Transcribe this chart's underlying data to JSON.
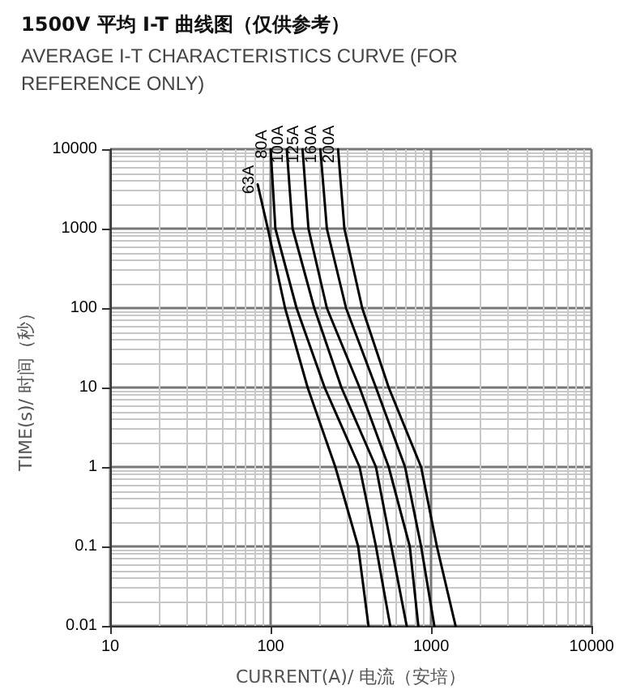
{
  "chart_data": {
    "type": "line",
    "title": "1500V 平均 I-T 曲线图（仅供参考）",
    "subtitle": "AVERAGE I-T CHARACTERISTICS CURVE (FOR REFERENCE ONLY)",
    "xlabel": "CURRENT(A)/ 电流（安培）",
    "ylabel": "TIME(s)/ 时间（秒）",
    "log": "xy",
    "xlim": [
      10,
      10000
    ],
    "ylim": [
      0.01,
      10000
    ],
    "xticks": [
      10,
      100,
      1000,
      10000
    ],
    "yticks": [
      0.01,
      0.1,
      1,
      10,
      100,
      1000,
      10000
    ],
    "grid": true,
    "legend": false,
    "marker": "none",
    "line_style": "solid",
    "series": [
      {
        "name": "63A",
        "color": "#000000",
        "x": [
          83,
          96,
          123,
          170,
          253,
          351,
          407
        ],
        "values": [
          3600,
          1000,
          100,
          10,
          1,
          0.1,
          0.01
        ]
      },
      {
        "name": "80A",
        "color": "#000000",
        "x": [
          100,
          107,
          145,
          217,
          358,
          453,
          556
        ],
        "values": [
          10000,
          1000,
          100,
          10,
          1,
          0.1,
          0.01
        ]
      },
      {
        "name": "100A",
        "color": "#000000",
        "x": [
          126,
          137,
          187,
          276,
          453,
          565,
          704
        ],
        "values": [
          10000,
          1000,
          100,
          10,
          1,
          0.1,
          0.01
        ]
      },
      {
        "name": "125A",
        "color": "#000000",
        "x": [
          158,
          172,
          224,
          358,
          544,
          736,
          832
        ],
        "values": [
          10000,
          1000,
          100,
          10,
          1,
          0.1,
          0.01
        ]
      },
      {
        "name": "160A",
        "color": "#000000",
        "x": [
          204,
          224,
          295,
          453,
          688,
          866,
          1047
        ],
        "values": [
          10000,
          1000,
          100,
          10,
          1,
          0.1,
          0.01
        ]
      },
      {
        "name": "200A",
        "color": "#000000",
        "x": [
          263,
          288,
          372,
          544,
          866,
          1086,
          1420
        ],
        "values": [
          10000,
          1000,
          100,
          10,
          1,
          0.1,
          0.01
        ]
      }
    ]
  }
}
